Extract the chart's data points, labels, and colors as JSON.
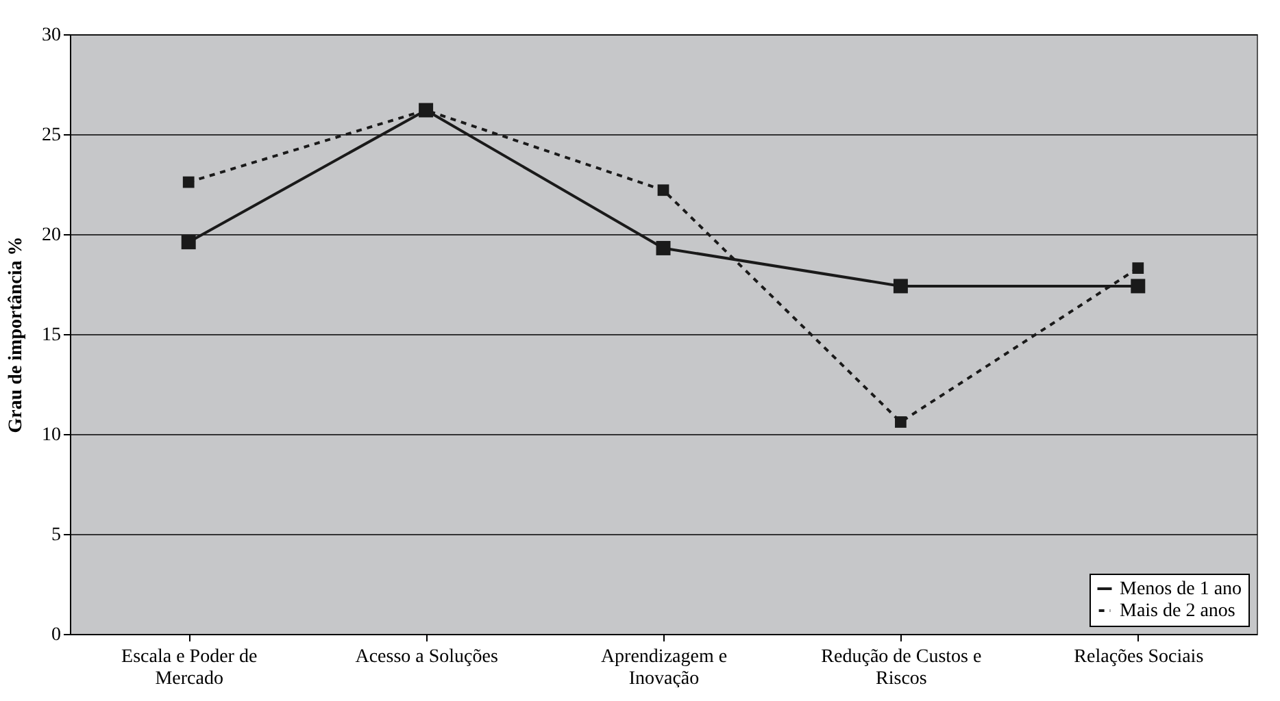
{
  "chart_data": {
    "type": "line",
    "ylabel": "Grau de importância %",
    "categories": [
      "Escala e Poder de Mercado",
      "Acesso a Soluções",
      "Aprendizagem e Inovação",
      "Redução de Custos e Riscos",
      "Relações Sociais"
    ],
    "series": [
      {
        "name": "Menos de 1 ano",
        "color": "#1a1a1a",
        "line_style": "solid",
        "values": [
          19.6,
          26.2,
          19.3,
          17.4,
          17.4
        ]
      },
      {
        "name": "Mais de 2 anos",
        "color": "#1a1a1a",
        "line_style": "dashed",
        "values": [
          22.6,
          26.2,
          22.2,
          10.6,
          18.3
        ]
      }
    ],
    "ylim": [
      0,
      30
    ],
    "yticks": [
      0,
      5,
      10,
      15,
      20,
      25,
      30
    ],
    "grid": "y",
    "legend": "bottom right",
    "marker": "square"
  }
}
